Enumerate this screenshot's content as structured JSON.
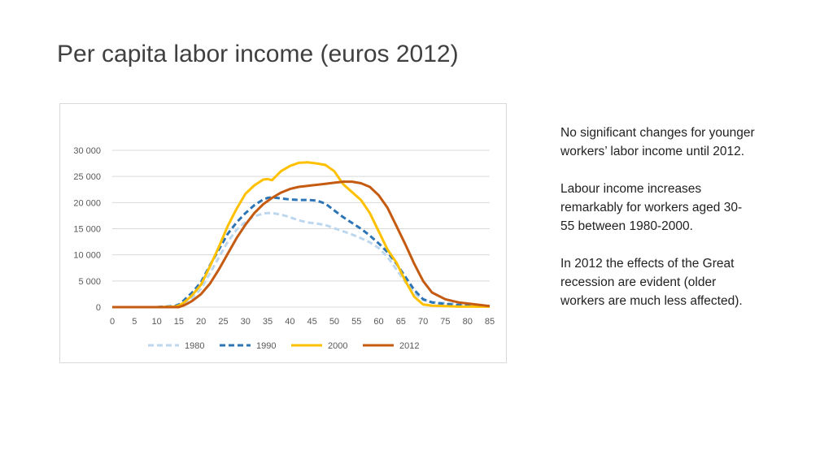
{
  "slide": {
    "title": "Per capita labor income (euros 2012)"
  },
  "notes": [
    "No significant changes for younger workers’ labor income until 2012.",
    "Labour income increases remarkably for workers aged 30-55 between 1980-2000.",
    "In 2012 the effects of the Great recession are evident (older workers are much less affected)."
  ],
  "chart_data": {
    "type": "line",
    "title": "",
    "xlabel": "",
    "ylabel": "",
    "xlim": [
      0,
      85
    ],
    "ylim": [
      0,
      30000
    ],
    "x_ticks": [
      0,
      5,
      10,
      15,
      20,
      25,
      30,
      35,
      40,
      45,
      50,
      55,
      60,
      65,
      70,
      75,
      80,
      85
    ],
    "x_tick_labels": [
      "0",
      "5",
      "10",
      "15",
      "20",
      "25",
      "30",
      "35",
      "40",
      "45",
      "50",
      "55",
      "60",
      "65",
      "70",
      "75",
      "80",
      "85"
    ],
    "y_ticks": [
      0,
      5000,
      10000,
      15000,
      20000,
      25000,
      30000
    ],
    "y_tick_labels": [
      "0",
      "5 000",
      "10 000",
      "15 000",
      "20 000",
      "25 000",
      "30 000"
    ],
    "grid": "horizontal",
    "legend_position": "bottom",
    "x": [
      0,
      5,
      10,
      14,
      15,
      16,
      17,
      18,
      20,
      22,
      24,
      26,
      28,
      30,
      32,
      34,
      35,
      36,
      38,
      40,
      42,
      44,
      46,
      48,
      50,
      52,
      54,
      56,
      58,
      60,
      62,
      64,
      66,
      68,
      70,
      72,
      75,
      78,
      80,
      85
    ],
    "series": [
      {
        "name": "1980",
        "color": "#bdd7ee",
        "style": "dashed",
        "values": [
          0,
          0,
          0,
          100,
          300,
          700,
          1200,
          1800,
          3500,
          6500,
          9500,
          12500,
          14800,
          16300,
          17400,
          17900,
          18000,
          18000,
          17700,
          17200,
          16600,
          16200,
          16000,
          15700,
          15100,
          14500,
          13900,
          13200,
          12400,
          11300,
          9600,
          7200,
          4800,
          2700,
          1400,
          1000,
          800,
          600,
          400,
          200
        ]
      },
      {
        "name": "1990",
        "color": "#2e75b6",
        "style": "dashed",
        "values": [
          0,
          0,
          0,
          200,
          500,
          1200,
          2000,
          2800,
          4800,
          8000,
          11000,
          14000,
          16200,
          18000,
          19500,
          20600,
          20900,
          21000,
          20800,
          20600,
          20500,
          20500,
          20400,
          19800,
          18500,
          17200,
          16100,
          15000,
          13700,
          12200,
          10500,
          8300,
          5800,
          3300,
          1500,
          900,
          600,
          400,
          300,
          200
        ]
      },
      {
        "name": "2000",
        "color": "#ffc000",
        "style": "solid",
        "values": [
          0,
          0,
          0,
          100,
          300,
          800,
          1500,
          2300,
          4300,
          7800,
          11500,
          15500,
          18800,
          21700,
          23300,
          24400,
          24500,
          24300,
          26000,
          27000,
          27600,
          27700,
          27500,
          27200,
          26000,
          23500,
          22000,
          20500,
          18000,
          14500,
          11000,
          8500,
          5000,
          2000,
          500,
          300,
          200,
          100,
          100,
          100
        ]
      },
      {
        "name": "2012",
        "color": "#c55a11",
        "style": "solid",
        "values": [
          0,
          0,
          0,
          0,
          0,
          300,
          700,
          1200,
          2500,
          4500,
          7200,
          10200,
          13200,
          15800,
          18000,
          19700,
          20300,
          20900,
          21900,
          22600,
          23000,
          23200,
          23400,
          23600,
          23800,
          24000,
          24000,
          23700,
          23000,
          21400,
          19000,
          15500,
          12000,
          8300,
          5000,
          2800,
          1500,
          900,
          700,
          200
        ]
      }
    ]
  }
}
